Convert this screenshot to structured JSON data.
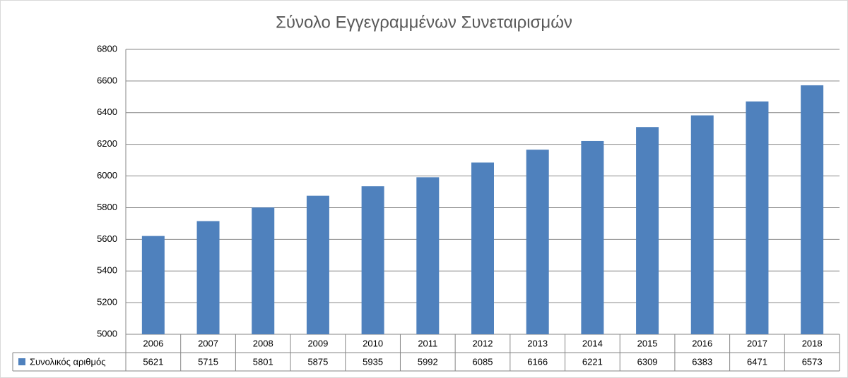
{
  "chart_data": {
    "type": "bar",
    "title": "Σύνολο Εγγεγραμμένων Συνεταιρισμών",
    "categories": [
      "2006",
      "2007",
      "2008",
      "2009",
      "2010",
      "2011",
      "2012",
      "2013",
      "2014",
      "2015",
      "2016",
      "2017",
      "2018"
    ],
    "series": [
      {
        "name": "Συνολικός αριθμός",
        "color": "#4f81bd",
        "values": [
          5621,
          5715,
          5801,
          5875,
          5935,
          5992,
          6085,
          6166,
          6221,
          6309,
          6383,
          6471,
          6573
        ]
      }
    ],
    "ylim": [
      5000,
      6800
    ],
    "yticks": [
      5000,
      5200,
      5400,
      5600,
      5800,
      6000,
      6200,
      6400,
      6600,
      6800
    ],
    "grid": true,
    "data_table": true
  }
}
